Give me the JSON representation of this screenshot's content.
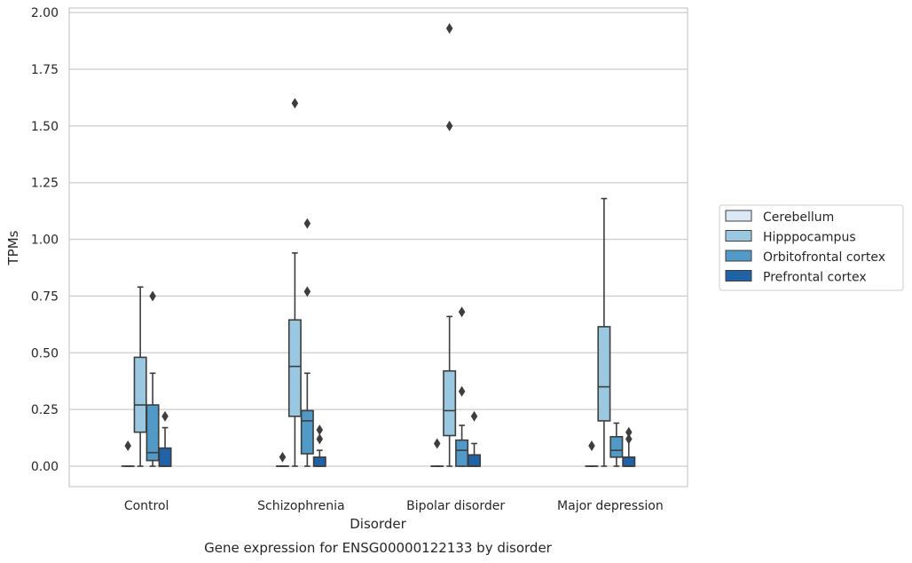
{
  "chart_data": {
    "type": "boxplot",
    "caption": "Gene expression for ENSG00000122133 by disorder",
    "xlabel": "Disorder",
    "ylabel": "TPMs",
    "ylim": [
      -0.09,
      2.02
    ],
    "yticks": [
      0.0,
      0.25,
      0.5,
      0.75,
      1.0,
      1.25,
      1.5,
      1.75,
      2.0
    ],
    "ytick_labels": [
      "0.00",
      "0.25",
      "0.50",
      "0.75",
      "1.00",
      "1.25",
      "1.50",
      "1.75",
      "2.00"
    ],
    "categories": [
      "Control",
      "Schizophrenia",
      "Bipolar disorder",
      "Major depression"
    ],
    "grid": "horizontal",
    "legend_position": "right",
    "series": [
      {
        "name": "Cerebellum",
        "color": "#dbe9f6",
        "boxes": [
          {
            "min": 0.0,
            "q1": 0.0,
            "median": 0.0,
            "q3": 0.0,
            "max": 0.0,
            "outliers": [
              0.09
            ]
          },
          {
            "min": 0.0,
            "q1": 0.0,
            "median": 0.0,
            "q3": 0.0,
            "max": 0.0,
            "outliers": [
              0.04
            ]
          },
          {
            "min": 0.0,
            "q1": 0.0,
            "median": 0.0,
            "q3": 0.0,
            "max": 0.0,
            "outliers": [
              0.1
            ]
          },
          {
            "min": 0.0,
            "q1": 0.0,
            "median": 0.0,
            "q3": 0.0,
            "max": 0.0,
            "outliers": [
              0.09
            ]
          }
        ]
      },
      {
        "name": "Hipppocampus",
        "color": "#9ac8e0",
        "boxes": [
          {
            "min": 0.0,
            "q1": 0.15,
            "median": 0.27,
            "q3": 0.48,
            "max": 0.79,
            "outliers": []
          },
          {
            "min": 0.0,
            "q1": 0.22,
            "median": 0.44,
            "q3": 0.645,
            "max": 0.94,
            "outliers": [
              1.6
            ]
          },
          {
            "min": 0.0,
            "q1": 0.135,
            "median": 0.245,
            "q3": 0.42,
            "max": 0.66,
            "outliers": [
              1.5,
              1.93
            ]
          },
          {
            "min": 0.0,
            "q1": 0.2,
            "median": 0.35,
            "q3": 0.615,
            "max": 1.18,
            "outliers": []
          }
        ]
      },
      {
        "name": "Orbitofrontal cortex",
        "color": "#5199c7",
        "boxes": [
          {
            "min": 0.0,
            "q1": 0.025,
            "median": 0.06,
            "q3": 0.27,
            "max": 0.41,
            "outliers": [
              0.75
            ]
          },
          {
            "min": 0.0,
            "q1": 0.055,
            "median": 0.2,
            "q3": 0.245,
            "max": 0.41,
            "outliers": [
              0.77,
              1.07
            ]
          },
          {
            "min": 0.0,
            "q1": 0.0,
            "median": 0.07,
            "q3": 0.115,
            "max": 0.18,
            "outliers": [
              0.33,
              0.68
            ]
          },
          {
            "min": 0.0,
            "q1": 0.04,
            "median": 0.07,
            "q3": 0.13,
            "max": 0.19,
            "outliers": []
          }
        ]
      },
      {
        "name": "Prefrontal cortex",
        "color": "#2062a6",
        "boxes": [
          {
            "min": 0.0,
            "q1": 0.0,
            "median": 0.0,
            "q3": 0.08,
            "max": 0.17,
            "outliers": [
              0.22
            ]
          },
          {
            "min": 0.0,
            "q1": 0.0,
            "median": 0.0,
            "q3": 0.04,
            "max": 0.07,
            "outliers": [
              0.12,
              0.16
            ]
          },
          {
            "min": 0.0,
            "q1": 0.0,
            "median": 0.0,
            "q3": 0.05,
            "max": 0.1,
            "outliers": [
              0.22
            ]
          },
          {
            "min": 0.0,
            "q1": 0.0,
            "median": 0.0,
            "q3": 0.04,
            "max": 0.12,
            "outliers": [
              0.12,
              0.15
            ]
          }
        ]
      }
    ]
  }
}
